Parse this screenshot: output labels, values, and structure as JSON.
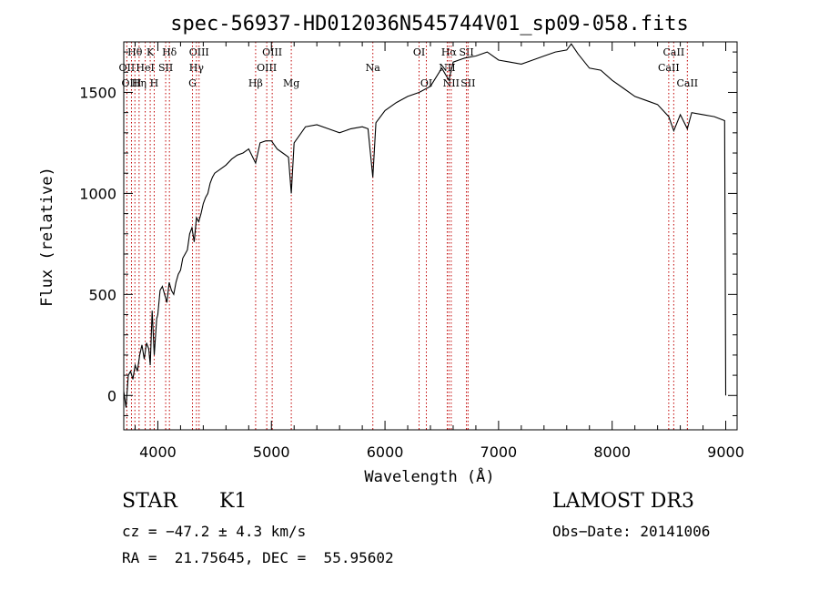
{
  "chart_data": {
    "type": "line",
    "title": "spec-56937-HD012036N545744V01_sp09-058.fits",
    "xlabel": "Wavelength (Å)",
    "ylabel": "Flux (relative)",
    "xlim": [
      3700,
      9100
    ],
    "ylim": [
      -170,
      1750
    ],
    "xticks": [
      4000,
      5000,
      6000,
      7000,
      8000,
      9000
    ],
    "yticks": [
      0,
      500,
      1000,
      1500
    ],
    "grid": false,
    "series": [
      {
        "x": [
          3700,
          3720,
          3740,
          3760,
          3780,
          3800,
          3820,
          3840,
          3860,
          3880,
          3900,
          3920,
          3933,
          3950,
          3968,
          3990,
          4000,
          4020,
          4040,
          4060,
          4080,
          4100,
          4120,
          4140,
          4160,
          4180,
          4200,
          4220,
          4240,
          4260,
          4280,
          4300,
          4320,
          4340,
          4360,
          4380,
          4400,
          4420,
          4440,
          4460,
          4480,
          4500,
          4550,
          4600,
          4650,
          4700,
          4750,
          4800,
          4861,
          4900,
          4950,
          5000,
          5050,
          5100,
          5150,
          5175,
          5200,
          5250,
          5300,
          5400,
          5500,
          5600,
          5700,
          5800,
          5850,
          5893,
          5920,
          6000,
          6100,
          6200,
          6300,
          6400,
          6500,
          6563,
          6600,
          6700,
          6800,
          6900,
          7000,
          7100,
          7200,
          7300,
          7400,
          7500,
          7600,
          7640,
          7700,
          7800,
          7900,
          8000,
          8100,
          8200,
          8300,
          8400,
          8498,
          8542,
          8600,
          8662,
          8700,
          8800,
          8900,
          8990,
          9000
        ],
        "y": [
          20,
          -60,
          100,
          120,
          80,
          150,
          120,
          200,
          250,
          180,
          260,
          230,
          150,
          420,
          200,
          380,
          400,
          520,
          540,
          500,
          460,
          560,
          520,
          500,
          560,
          600,
          620,
          680,
          700,
          720,
          800,
          830,
          760,
          880,
          860,
          900,
          950,
          980,
          1000,
          1050,
          1080,
          1100,
          1120,
          1140,
          1170,
          1190,
          1200,
          1220,
          1150,
          1250,
          1260,
          1260,
          1220,
          1200,
          1180,
          1000,
          1250,
          1290,
          1330,
          1340,
          1320,
          1300,
          1320,
          1330,
          1320,
          1080,
          1350,
          1410,
          1450,
          1480,
          1500,
          1530,
          1620,
          1560,
          1650,
          1670,
          1680,
          1700,
          1660,
          1650,
          1640,
          1660,
          1680,
          1700,
          1710,
          1740,
          1690,
          1620,
          1610,
          1560,
          1520,
          1480,
          1460,
          1440,
          1380,
          1310,
          1390,
          1320,
          1400,
          1390,
          1380,
          1360,
          0
        ]
      }
    ],
    "lines": [
      {
        "label": "Hθ",
        "x": 3798,
        "row": 0
      },
      {
        "label": "OII",
        "x": 3727,
        "row": 1
      },
      {
        "label": "OIII",
        "x": 3768,
        "row": 2
      },
      {
        "label": "K",
        "x": 3933,
        "row": 0
      },
      {
        "label": "HeI",
        "x": 3889,
        "row": 1
      },
      {
        "label": "Hη",
        "x": 3835,
        "row": 2
      },
      {
        "label": "Hδ",
        "x": 4102,
        "row": 0
      },
      {
        "label": "SII",
        "x": 4069,
        "row": 1
      },
      {
        "label": "H",
        "x": 3968,
        "row": 2
      },
      {
        "label": "OIII",
        "x": 4363,
        "row": 0
      },
      {
        "label": "Hγ",
        "x": 4340,
        "row": 1
      },
      {
        "label": "G",
        "x": 4305,
        "row": 2
      },
      {
        "label": "OIII",
        "x": 5007,
        "row": 0
      },
      {
        "label": "OIII",
        "x": 4959,
        "row": 1
      },
      {
        "label": "Hβ",
        "x": 4861,
        "row": 2
      },
      {
        "label": "Mg",
        "x": 5175,
        "row": 2
      },
      {
        "label": "Na",
        "x": 5893,
        "row": 1
      },
      {
        "label": "OI",
        "x": 6300,
        "row": 0
      },
      {
        "label": "OI",
        "x": 6364,
        "row": 2
      },
      {
        "label": "Hα",
        "x": 6563,
        "row": 0
      },
      {
        "label": "SII",
        "x": 6717,
        "row": 0
      },
      {
        "label": "NII",
        "x": 6548,
        "row": 1
      },
      {
        "label": "NII",
        "x": 6583,
        "row": 2
      },
      {
        "label": "SII",
        "x": 6731,
        "row": 2
      },
      {
        "label": "CaII",
        "x": 8542,
        "row": 0
      },
      {
        "label": "CaII",
        "x": 8498,
        "row": 1
      },
      {
        "label": "CaII",
        "x": 8662,
        "row": 2
      }
    ]
  },
  "info": {
    "object_class": "STAR",
    "subclass": "K1",
    "survey": "LAMOST DR3",
    "cz": "cz = −47.2 ± 4.3 km/s",
    "obs_date": "Obs−Date: 20141006",
    "coords": "RA =  21.75645, DEC =  55.95602"
  }
}
